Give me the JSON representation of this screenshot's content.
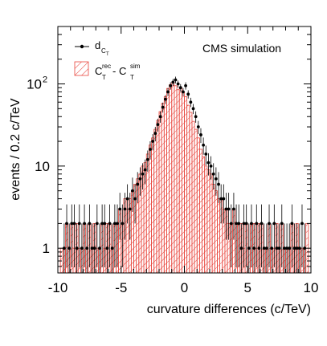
{
  "chart_data": {
    "type": "histogram",
    "annotation": "CMS simulation",
    "xlabel": "curvature differences (c/TeV)",
    "ylabel": "events / 0.2 c/TeV",
    "xlim": [
      -10,
      10
    ],
    "ylim": [
      0.5,
      500
    ],
    "yscale": "log",
    "bin_width": 0.2,
    "x_ticks": [
      {
        "value": -10,
        "label": "-10"
      },
      {
        "value": -5,
        "label": "-5"
      },
      {
        "value": 0,
        "label": "0"
      },
      {
        "value": 5,
        "label": "5"
      },
      {
        "value": 10,
        "label": "10"
      }
    ],
    "y_ticks": [
      {
        "value": 1,
        "label": "1"
      },
      {
        "value": 10,
        "label": "10"
      },
      {
        "value": 100,
        "label": "10",
        "exponent": "2"
      }
    ],
    "legend": {
      "position": "top-left",
      "entries": [
        {
          "series": "points",
          "label": "d",
          "sub": "C",
          "subsub": "T"
        },
        {
          "series": "hist",
          "label": "C",
          "sup1": "rec",
          "sub1": "T",
          "mid": " - C",
          "sup2": "sim",
          "sub2": "T"
        }
      ]
    },
    "colors": {
      "points": "#000000",
      "hist": "#e8453c"
    },
    "series": [
      {
        "key": "points",
        "x": [
          -9.5,
          -9.3,
          -9.1,
          -8.9,
          -8.7,
          -8.5,
          -8.3,
          -8.1,
          -7.9,
          -7.7,
          -7.5,
          -7.3,
          -7.1,
          -6.9,
          -6.7,
          -6.5,
          -6.3,
          -6.1,
          -5.9,
          -5.7,
          -5.5,
          -5.3,
          -5.1,
          -4.9,
          -4.7,
          -4.5,
          -4.3,
          -4.1,
          -3.9,
          -3.7,
          -3.5,
          -3.3,
          -3.1,
          -2.9,
          -2.7,
          -2.5,
          -2.3,
          -2.1,
          -1.9,
          -1.7,
          -1.5,
          -1.3,
          -1.1,
          -0.9,
          -0.7,
          -0.5,
          -0.3,
          -0.1,
          0.1,
          0.3,
          0.5,
          0.7,
          0.9,
          1.1,
          1.3,
          1.5,
          1.7,
          1.9,
          2.1,
          2.3,
          2.5,
          2.7,
          2.9,
          3.1,
          3.3,
          3.5,
          3.7,
          3.9,
          4.1,
          4.3,
          4.5,
          4.7,
          4.9,
          5.1,
          5.3,
          5.5,
          5.7,
          5.9,
          6.1,
          6.3,
          6.5,
          6.7,
          6.9,
          7.1,
          7.3,
          7.5,
          7.7,
          7.9,
          8.1,
          8.3,
          8.5,
          8.7,
          8.9,
          9.1,
          9.3,
          9.5
        ],
        "y": [
          1,
          2,
          1,
          2,
          2,
          1,
          2,
          1,
          2,
          1,
          2,
          1,
          1,
          2,
          1,
          2,
          2,
          1,
          2,
          1,
          2,
          2,
          3,
          2,
          3,
          4,
          3,
          5,
          4,
          6,
          7,
          8,
          9,
          12,
          16,
          20,
          25,
          32,
          40,
          52,
          65,
          80,
          95,
          105,
          112,
          100,
          90,
          80,
          95,
          75,
          60,
          50,
          40,
          30,
          24,
          18,
          14,
          11,
          10,
          8,
          7,
          6,
          4,
          4,
          3,
          3,
          2,
          3,
          2,
          2,
          1,
          2,
          2,
          1,
          2,
          1,
          2,
          1,
          2,
          1,
          1,
          2,
          1,
          2,
          1,
          1,
          2,
          1,
          1,
          1,
          2,
          1,
          1,
          1,
          2,
          1
        ]
      },
      {
        "key": "hist",
        "x": [
          -9.7,
          -9.5,
          -9.3,
          -9.1,
          -8.9,
          -8.7,
          -8.5,
          -8.3,
          -8.1,
          -7.9,
          -7.7,
          -7.5,
          -7.3,
          -7.1,
          -6.9,
          -6.7,
          -6.5,
          -6.3,
          -6.1,
          -5.9,
          -5.7,
          -5.5,
          -5.3,
          -5.1,
          -4.9,
          -4.7,
          -4.5,
          -4.3,
          -4.1,
          -3.9,
          -3.7,
          -3.5,
          -3.3,
          -3.1,
          -2.9,
          -2.7,
          -2.5,
          -2.3,
          -2.1,
          -1.9,
          -1.7,
          -1.5,
          -1.3,
          -1.1,
          -0.9,
          -0.7,
          -0.5,
          -0.3,
          -0.1,
          0.1,
          0.3,
          0.5,
          0.7,
          0.9,
          1.1,
          1.3,
          1.5,
          1.7,
          1.9,
          2.1,
          2.3,
          2.5,
          2.7,
          2.9,
          3.1,
          3.3,
          3.5,
          3.7,
          3.9,
          4.1,
          4.3,
          4.5,
          4.7,
          4.9,
          5.1,
          5.3,
          5.5,
          5.7,
          5.9,
          6.1,
          6.3,
          6.5,
          6.7,
          6.9,
          7.1,
          7.3,
          7.5,
          7.7,
          7.9,
          8.1,
          8.3,
          8.5,
          8.7,
          8.9,
          9.1,
          9.3,
          9.5,
          9.7
        ],
        "y": [
          1,
          1,
          2,
          1,
          2,
          1,
          2,
          1,
          1,
          2,
          1,
          2,
          1,
          2,
          1,
          1,
          2,
          1,
          2,
          2,
          1,
          2,
          2,
          3,
          2,
          4,
          3,
          4,
          5,
          6,
          7,
          8,
          10,
          11,
          14,
          18,
          22,
          28,
          36,
          46,
          58,
          70,
          88,
          98,
          105,
          95,
          85,
          90,
          80,
          70,
          55,
          45,
          35,
          28,
          22,
          16,
          13,
          10,
          9,
          8,
          6,
          5,
          4,
          4,
          3,
          3,
          2,
          2,
          3,
          2,
          2,
          2,
          1,
          2,
          1,
          2,
          2,
          1,
          2,
          2,
          1,
          1,
          2,
          1,
          1,
          2,
          1,
          2,
          1,
          1,
          1,
          2,
          1,
          2,
          1,
          1,
          1,
          2
        ]
      }
    ]
  }
}
